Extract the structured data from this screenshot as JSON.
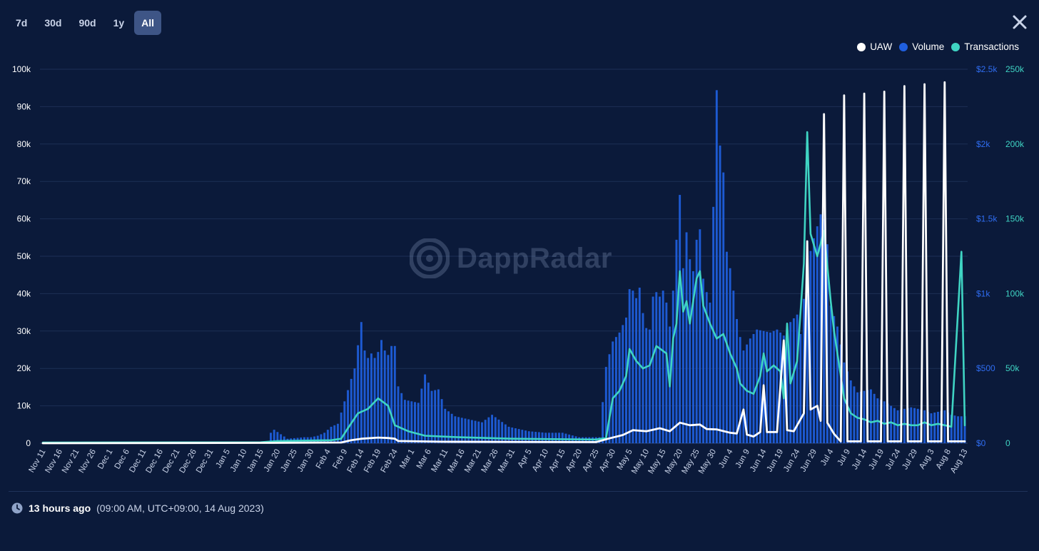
{
  "ranges": [
    {
      "label": "7d",
      "active": false
    },
    {
      "label": "30d",
      "active": false
    },
    {
      "label": "90d",
      "active": false
    },
    {
      "label": "1y",
      "active": false
    },
    {
      "label": "All",
      "active": true
    }
  ],
  "close_icon": "close-icon",
  "watermark": {
    "text": "DappRadar",
    "icon": "dappradar-logo-icon"
  },
  "footer": {
    "icon": "clock-icon",
    "relative": "13 hours ago",
    "detail": "(09:00 AM, UTC+09:00, 14 Aug 2023)"
  },
  "colors": {
    "background": "#0b1a3a",
    "uaw": "#ffffff",
    "volume": "#1f5fe0",
    "transactions": "#3fd4c3",
    "active_range": "#3e5586"
  },
  "chart_data": {
    "type": "bar+line",
    "legend_position": "top-right",
    "grid": true,
    "x_tick_labels": [
      "Nov 11",
      "Nov 16",
      "Nov 21",
      "Nov 26",
      "Dec 1",
      "Dec 6",
      "Dec 11",
      "Dec 16",
      "Dec 21",
      "Dec 26",
      "Dec 31",
      "Jan 5",
      "Jan 10",
      "Jan 15",
      "Jan 20",
      "Jan 25",
      "Jan 30",
      "Feb 4",
      "Feb 9",
      "Feb 14",
      "Feb 19",
      "Feb 24",
      "Mar 1",
      "Mar 6",
      "Mar 11",
      "Mar 16",
      "Mar 21",
      "Mar 26",
      "Mar 31",
      "Apr 5",
      "Apr 10",
      "Apr 15",
      "Apr 20",
      "Apr 25",
      "Apr 30",
      "May 5",
      "May 10",
      "May 15",
      "May 20",
      "May 25",
      "May 30",
      "Jun 4",
      "Jun 9",
      "Jun 14",
      "Jun 19",
      "Jun 24",
      "Jun 29",
      "Jul 4",
      "Jul 9",
      "Jul 14",
      "Jul 19",
      "Jul 24",
      "Jul 29",
      "Aug 3",
      "Aug 8",
      "Aug 13"
    ],
    "axes": {
      "left": {
        "series": "UAW",
        "ticks": [
          "0",
          "10k",
          "20k",
          "30k",
          "40k",
          "50k",
          "60k",
          "70k",
          "80k",
          "90k",
          "100k"
        ],
        "range": [
          0,
          100000
        ]
      },
      "right_volume": {
        "series": "Volume",
        "ticks": [
          "$0",
          "$500",
          "$1k",
          "$1.5k",
          "$2k",
          "$2.5k"
        ],
        "range": [
          0,
          2500
        ]
      },
      "right_transactions": {
        "series": "Transactions",
        "ticks": [
          "0",
          "50k",
          "100k",
          "150k",
          "200k",
          "250k"
        ],
        "range": [
          0,
          250000
        ]
      }
    },
    "series": [
      {
        "name": "Volume",
        "type": "bar",
        "axis": "right_volume",
        "points": [
          [
            "Jan 18",
            70
          ],
          [
            "Jan 19",
            90
          ],
          [
            "Jan 23",
            30
          ],
          [
            "Jan 28",
            40
          ],
          [
            "Jan 30",
            40
          ],
          [
            "Feb 1",
            50
          ],
          [
            "Feb 3",
            70
          ],
          [
            "Feb 5",
            110
          ],
          [
            "Feb 7",
            130
          ],
          [
            "Feb 9",
            280
          ],
          [
            "Feb 11",
            430
          ],
          [
            "Feb 12",
            500
          ],
          [
            "Feb 14",
            810
          ],
          [
            "Feb 15",
            620
          ],
          [
            "Feb 16",
            570
          ],
          [
            "Feb 17",
            600
          ],
          [
            "Feb 18",
            570
          ],
          [
            "Feb 19",
            610
          ],
          [
            "Feb 20",
            690
          ],
          [
            "Feb 21",
            620
          ],
          [
            "Feb 22",
            590
          ],
          [
            "Feb 23",
            650
          ],
          [
            "Feb 24",
            650
          ],
          [
            "Feb 25",
            380
          ],
          [
            "Feb 27",
            290
          ],
          [
            "Mar 1",
            280
          ],
          [
            "Mar 3",
            270
          ],
          [
            "Mar 5",
            460
          ],
          [
            "Mar 7",
            350
          ],
          [
            "Mar 9",
            360
          ],
          [
            "Mar 11",
            230
          ],
          [
            "Mar 14",
            180
          ],
          [
            "Mar 18",
            160
          ],
          [
            "Mar 22",
            140
          ],
          [
            "Mar 25",
            190
          ],
          [
            "Mar 30",
            110
          ],
          [
            "Apr 5",
            80
          ],
          [
            "Apr 10",
            70
          ],
          [
            "Apr 15",
            70
          ],
          [
            "Apr 20",
            40
          ],
          [
            "Apr 26",
            40
          ],
          [
            "Apr 28",
            510
          ],
          [
            "Apr 30",
            680
          ],
          [
            "May 2",
            740
          ],
          [
            "May 4",
            840
          ],
          [
            "May 5",
            1030
          ],
          [
            "May 6",
            1020
          ],
          [
            "May 7",
            970
          ],
          [
            "May 8",
            1040
          ],
          [
            "May 9",
            870
          ],
          [
            "May 10",
            770
          ],
          [
            "May 11",
            760
          ],
          [
            "May 12",
            980
          ],
          [
            "May 13",
            1010
          ],
          [
            "May 14",
            980
          ],
          [
            "May 15",
            1020
          ],
          [
            "May 16",
            940
          ],
          [
            "May 17",
            780
          ],
          [
            "May 18",
            1020
          ],
          [
            "May 19",
            1360
          ],
          [
            "May 20",
            1660
          ],
          [
            "May 21",
            1170
          ],
          [
            "May 22",
            1410
          ],
          [
            "May 23",
            1230
          ],
          [
            "May 24",
            1150
          ],
          [
            "May 25",
            1360
          ],
          [
            "May 26",
            1430
          ],
          [
            "May 27",
            1100
          ],
          [
            "May 28",
            1010
          ],
          [
            "May 29",
            940
          ],
          [
            "May 30",
            1580
          ],
          [
            "May 31",
            2360
          ],
          [
            "Jun 1",
            1990
          ],
          [
            "Jun 2",
            1810
          ],
          [
            "Jun 3",
            1280
          ],
          [
            "Jun 4",
            1170
          ],
          [
            "Jun 5",
            1020
          ],
          [
            "Jun 6",
            830
          ],
          [
            "Jun 7",
            710
          ],
          [
            "Jun 8",
            620
          ],
          [
            "Jun 10",
            700
          ],
          [
            "Jun 12",
            760
          ],
          [
            "Jun 14",
            750
          ],
          [
            "Jun 16",
            740
          ],
          [
            "Jun 18",
            760
          ],
          [
            "Jun 20",
            720
          ],
          [
            "Jun 22",
            810
          ],
          [
            "Jun 24",
            860
          ],
          [
            "Jun 25",
            730
          ],
          [
            "Jun 27",
            1200
          ],
          [
            "Jun 29",
            1370
          ],
          [
            "Jul 1",
            1530
          ],
          [
            "Jul 2",
            1500
          ],
          [
            "Jul 3",
            1330
          ],
          [
            "Jul 4",
            920
          ],
          [
            "Jul 6",
            780
          ],
          [
            "Jul 8",
            540
          ],
          [
            "Jul 10",
            420
          ],
          [
            "Jul 12",
            340
          ],
          [
            "Jul 14",
            350
          ],
          [
            "Jul 16",
            360
          ],
          [
            "Jul 18",
            300
          ],
          [
            "Jul 20",
            280
          ],
          [
            "Jul 22",
            250
          ],
          [
            "Jul 24",
            220
          ],
          [
            "Jul 26",
            230
          ],
          [
            "Jul 28",
            240
          ],
          [
            "Jul 30",
            230
          ],
          [
            "Aug 1",
            220
          ],
          [
            "Aug 3",
            200
          ],
          [
            "Aug 5",
            210
          ],
          [
            "Aug 7",
            220
          ],
          [
            "Aug 9",
            190
          ],
          [
            "Aug 11",
            180
          ],
          [
            "Aug 13",
            180
          ]
        ]
      },
      {
        "name": "Transactions",
        "type": "line",
        "axis": "right_transactions",
        "points": [
          [
            "Nov 11",
            500
          ],
          [
            "Jan 15",
            600
          ],
          [
            "Jan 20",
            1500
          ],
          [
            "Feb 5",
            2000
          ],
          [
            "Feb 8",
            3000
          ],
          [
            "Feb 10",
            10000
          ],
          [
            "Feb 13",
            20000
          ],
          [
            "Feb 16",
            23000
          ],
          [
            "Feb 19",
            30000
          ],
          [
            "Feb 22",
            25000
          ],
          [
            "Feb 24",
            12000
          ],
          [
            "Feb 28",
            8000
          ],
          [
            "Mar 5",
            5000
          ],
          [
            "Mar 15",
            4000
          ],
          [
            "Mar 31",
            3000
          ],
          [
            "Apr 25",
            2500
          ],
          [
            "Apr 28",
            3500
          ],
          [
            "Apr 30",
            30000
          ],
          [
            "May 2",
            35000
          ],
          [
            "May 4",
            45000
          ],
          [
            "May 5",
            63000
          ],
          [
            "May 7",
            55000
          ],
          [
            "May 9",
            50000
          ],
          [
            "May 11",
            52000
          ],
          [
            "May 13",
            65000
          ],
          [
            "May 16",
            60000
          ],
          [
            "May 17",
            38000
          ],
          [
            "May 18",
            70000
          ],
          [
            "May 19",
            80000
          ],
          [
            "May 20",
            115000
          ],
          [
            "May 21",
            88000
          ],
          [
            "May 22",
            95000
          ],
          [
            "May 23",
            80000
          ],
          [
            "May 25",
            110000
          ],
          [
            "May 26",
            115000
          ],
          [
            "May 27",
            92000
          ],
          [
            "May 29",
            80000
          ],
          [
            "May 31",
            70000
          ],
          [
            "Jun 2",
            73000
          ],
          [
            "Jun 4",
            60000
          ],
          [
            "Jun 6",
            50000
          ],
          [
            "Jun 7",
            40000
          ],
          [
            "Jun 9",
            35000
          ],
          [
            "Jun 11",
            33000
          ],
          [
            "Jun 13",
            45000
          ],
          [
            "Jun 14",
            60000
          ],
          [
            "Jun 15",
            48000
          ],
          [
            "Jun 17",
            52000
          ],
          [
            "Jun 19",
            48000
          ],
          [
            "Jun 20",
            30000
          ],
          [
            "Jun 21",
            80000
          ],
          [
            "Jun 22",
            40000
          ],
          [
            "Jun 24",
            55000
          ],
          [
            "Jun 26",
            120000
          ],
          [
            "Jun 27",
            208000
          ],
          [
            "Jun 28",
            140000
          ],
          [
            "Jun 30",
            125000
          ],
          [
            "Jul 2",
            142000
          ],
          [
            "Jul 4",
            95000
          ],
          [
            "Jul 5",
            75000
          ],
          [
            "Jul 6",
            60000
          ],
          [
            "Jul 8",
            30000
          ],
          [
            "Jul 10",
            20000
          ],
          [
            "Jul 12",
            17000
          ],
          [
            "Jul 14",
            16000
          ],
          [
            "Jul 16",
            14000
          ],
          [
            "Jul 18",
            15000
          ],
          [
            "Jul 20",
            13000
          ],
          [
            "Jul 22",
            14000
          ],
          [
            "Jul 24",
            12000
          ],
          [
            "Jul 26",
            13000
          ],
          [
            "Jul 28",
            12000
          ],
          [
            "Jul 30",
            12000
          ],
          [
            "Aug 1",
            14000
          ],
          [
            "Aug 3",
            12000
          ],
          [
            "Aug 5",
            13000
          ],
          [
            "Aug 7",
            12000
          ],
          [
            "Aug 9",
            11000
          ],
          [
            "Aug 12",
            128000
          ],
          [
            "Aug 13",
            12000
          ]
        ]
      },
      {
        "name": "UAW",
        "type": "line",
        "axis": "left",
        "points": [
          [
            "Nov 11",
            0
          ],
          [
            "Jan 15",
            100
          ],
          [
            "Feb 8",
            200
          ],
          [
            "Feb 11",
            800
          ],
          [
            "Feb 14",
            1200
          ],
          [
            "Feb 19",
            1500
          ],
          [
            "Feb 22",
            1400
          ],
          [
            "Feb 24",
            1200
          ],
          [
            "Feb 25",
            600
          ],
          [
            "Mar 10",
            400
          ],
          [
            "Apr 25",
            300
          ],
          [
            "Apr 29",
            1300
          ],
          [
            "May 3",
            2200
          ],
          [
            "May 6",
            3500
          ],
          [
            "May 10",
            3200
          ],
          [
            "May 14",
            4000
          ],
          [
            "May 17",
            3200
          ],
          [
            "May 20",
            5500
          ],
          [
            "May 23",
            4800
          ],
          [
            "May 26",
            5000
          ],
          [
            "May 28",
            3800
          ],
          [
            "May 31",
            3700
          ],
          [
            "Jun 4",
            2800
          ],
          [
            "Jun 6",
            2600
          ],
          [
            "Jun 8",
            9000
          ],
          [
            "Jun 9",
            2300
          ],
          [
            "Jun 11",
            1800
          ],
          [
            "Jun 13",
            3000
          ],
          [
            "Jun 14",
            15500
          ],
          [
            "Jun 15",
            3000
          ],
          [
            "Jun 18",
            3000
          ],
          [
            "Jun 20",
            27500
          ],
          [
            "Jun 21",
            3500
          ],
          [
            "Jun 23",
            3200
          ],
          [
            "Jun 26",
            8000
          ],
          [
            "Jun 27",
            54000
          ],
          [
            "Jun 28",
            9000
          ],
          [
            "Jun 30",
            10000
          ],
          [
            "Jul 1",
            6000
          ],
          [
            "Jul 2",
            88000
          ],
          [
            "Jul 3",
            5500
          ],
          [
            "Jul 5",
            2500
          ],
          [
            "Jul 7",
            500
          ],
          [
            "Jul 8",
            93000
          ],
          [
            "Jul 9",
            500
          ],
          [
            "Jul 13",
            500
          ],
          [
            "Jul 14",
            93500
          ],
          [
            "Jul 15",
            500
          ],
          [
            "Jul 19",
            500
          ],
          [
            "Jul 20",
            94000
          ],
          [
            "Jul 21",
            500
          ],
          [
            "Jul 25",
            500
          ],
          [
            "Jul 26",
            95500
          ],
          [
            "Jul 27",
            500
          ],
          [
            "Jul 31",
            500
          ],
          [
            "Aug 1",
            96000
          ],
          [
            "Aug 2",
            500
          ],
          [
            "Aug 6",
            500
          ],
          [
            "Aug 7",
            96500
          ],
          [
            "Aug 8",
            500
          ],
          [
            "Aug 13",
            500
          ]
        ]
      }
    ]
  }
}
